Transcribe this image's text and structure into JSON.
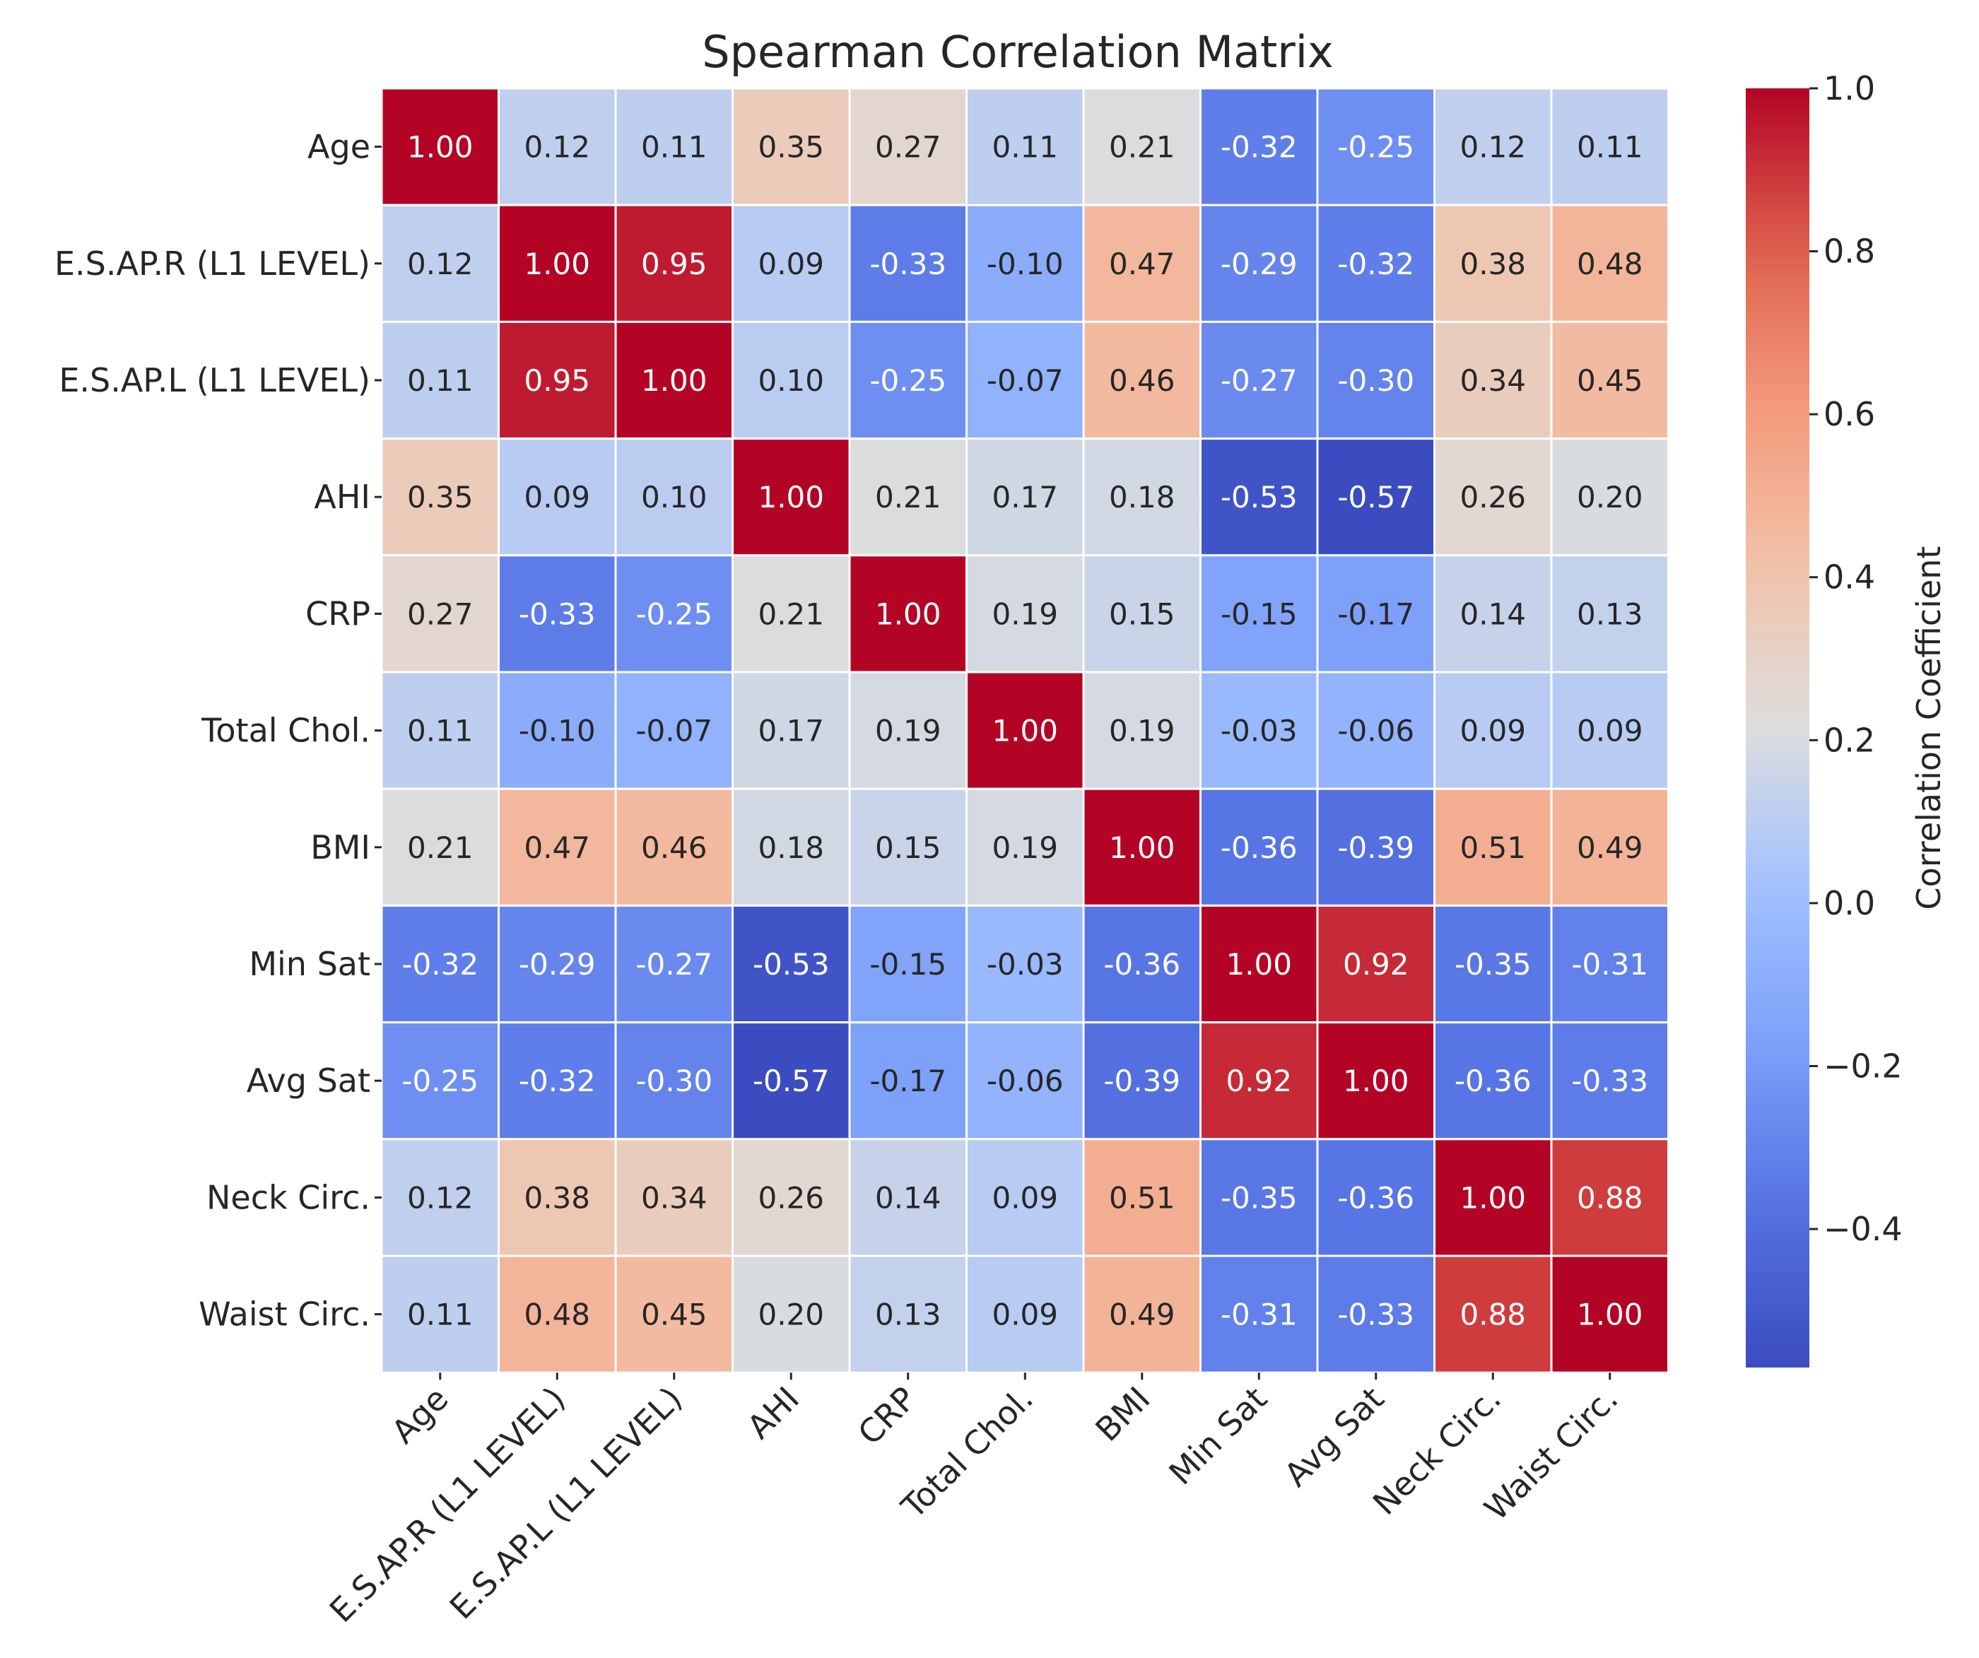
{
  "chart_data": {
    "type": "heatmap",
    "title": "Spearman Correlation Matrix",
    "variables": [
      "Age",
      "E.S.AP.R (L1 LEVEL)",
      "E.S.AP.L (L1 LEVEL)",
      "AHI",
      "CRP",
      "Total Chol.",
      "BMI",
      "Min Sat",
      "Avg Sat",
      "Neck Circ.",
      "Waist Circ."
    ],
    "matrix": [
      [
        1.0,
        0.12,
        0.11,
        0.35,
        0.27,
        0.11,
        0.21,
        -0.32,
        -0.25,
        0.12,
        0.11
      ],
      [
        0.12,
        1.0,
        0.95,
        0.09,
        -0.33,
        -0.1,
        0.47,
        -0.29,
        -0.32,
        0.38,
        0.48
      ],
      [
        0.11,
        0.95,
        1.0,
        0.1,
        -0.25,
        -0.07,
        0.46,
        -0.27,
        -0.3,
        0.34,
        0.45
      ],
      [
        0.35,
        0.09,
        0.1,
        1.0,
        0.21,
        0.17,
        0.18,
        -0.53,
        -0.57,
        0.26,
        0.2
      ],
      [
        0.27,
        -0.33,
        -0.25,
        0.21,
        1.0,
        0.19,
        0.15,
        -0.15,
        -0.17,
        0.14,
        0.13
      ],
      [
        0.11,
        -0.1,
        -0.07,
        0.17,
        0.19,
        1.0,
        0.19,
        -0.03,
        -0.06,
        0.09,
        0.09
      ],
      [
        0.21,
        0.47,
        0.46,
        0.18,
        0.15,
        0.19,
        1.0,
        -0.36,
        -0.39,
        0.51,
        0.49
      ],
      [
        -0.32,
        -0.29,
        -0.27,
        -0.53,
        -0.15,
        -0.03,
        -0.36,
        1.0,
        0.92,
        -0.35,
        -0.31
      ],
      [
        -0.25,
        -0.32,
        -0.3,
        -0.57,
        -0.17,
        -0.06,
        -0.39,
        0.92,
        1.0,
        -0.36,
        -0.33
      ],
      [
        0.12,
        0.38,
        0.34,
        0.26,
        0.14,
        0.09,
        0.51,
        -0.35,
        -0.36,
        1.0,
        0.88
      ],
      [
        0.11,
        0.48,
        0.45,
        0.2,
        0.13,
        0.09,
        0.49,
        -0.31,
        -0.33,
        0.88,
        1.0
      ]
    ],
    "cell_labels": [
      [
        "1.00",
        "0.12",
        "0.11",
        "0.35",
        "0.27",
        "0.11",
        "0.21",
        "-0.32",
        "-0.25",
        "0.12",
        "0.11"
      ],
      [
        "0.12",
        "1.00",
        "0.95",
        "0.09",
        "-0.33",
        "-0.10",
        "0.47",
        "-0.29",
        "-0.32",
        "0.38",
        "0.48"
      ],
      [
        "0.11",
        "0.95",
        "1.00",
        "0.10",
        "-0.25",
        "-0.07",
        "0.46",
        "-0.27",
        "-0.30",
        "0.34",
        "0.45"
      ],
      [
        "0.35",
        "0.09",
        "0.10",
        "1.00",
        "0.21",
        "0.17",
        "0.18",
        "-0.53",
        "-0.57",
        "0.26",
        "0.20"
      ],
      [
        "0.27",
        "-0.33",
        "-0.25",
        "0.21",
        "1.00",
        "0.19",
        "0.15",
        "-0.15",
        "-0.17",
        "0.14",
        "0.13"
      ],
      [
        "0.11",
        "-0.10",
        "-0.07",
        "0.17",
        "0.19",
        "1.00",
        "0.19",
        "-0.03",
        "-0.06",
        "0.09",
        "0.09"
      ],
      [
        "0.21",
        "0.47",
        "0.46",
        "0.18",
        "0.15",
        "0.19",
        "1.00",
        "-0.36",
        "-0.39",
        "0.51",
        "0.49"
      ],
      [
        "-0.32",
        "-0.29",
        "-0.27",
        "-0.53",
        "-0.15",
        "-0.03",
        "-0.36",
        "1.00",
        "0.92",
        "-0.35",
        "-0.31"
      ],
      [
        "-0.25",
        "-0.32",
        "-0.30",
        "-0.57",
        "-0.17",
        "-0.06",
        "-0.39",
        "0.92",
        "1.00",
        "-0.36",
        "-0.33"
      ],
      [
        "0.12",
        "0.38",
        "0.34",
        "0.26",
        "0.14",
        "0.09",
        "0.51",
        "-0.35",
        "-0.36",
        "1.00",
        "0.88"
      ],
      [
        "0.11",
        "0.48",
        "0.45",
        "0.20",
        "0.13",
        "0.09",
        "0.49",
        "-0.31",
        "-0.33",
        "0.88",
        "1.00"
      ]
    ],
    "colormap": "coolwarm",
    "color_range": [
      -0.57,
      1.0
    ],
    "colorbar": {
      "label": "Correlation Coefficient",
      "ticks": [
        1.0,
        0.8,
        0.6,
        0.4,
        0.2,
        0.0,
        -0.2,
        -0.4
      ],
      "tick_labels": [
        "1.0",
        "0.8",
        "0.6",
        "0.4",
        "0.2",
        "0.0",
        "−0.2",
        "−0.4"
      ],
      "placement": "right"
    },
    "xlabel": "",
    "ylabel": ""
  },
  "colors": {
    "text_dark": "#262626",
    "text_light": "#ffffff",
    "cell_border": "#ffffff"
  }
}
